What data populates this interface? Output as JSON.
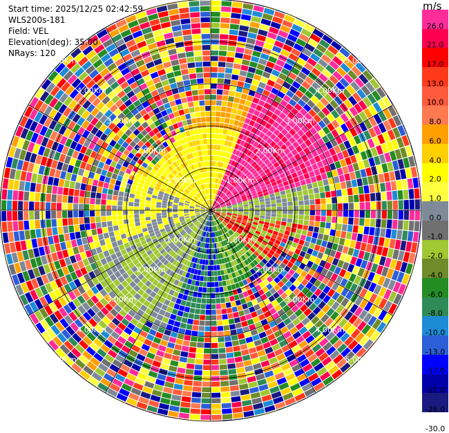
{
  "header": {
    "start_time": "Start time: 2025/12/25 02:42:59",
    "station": "WLS200s-181",
    "field": "Field: VEL",
    "elevation": "Elevation(deg): 35.00",
    "nrays": "NRays: 120"
  },
  "range_labels": [
    "1.00Km",
    "2.00Km",
    "3.00Km",
    "4.00Km",
    "5.00Km"
  ],
  "colorbar": {
    "unit": "m/s",
    "ticks": [
      "26.0",
      "21.0",
      "17.0",
      "13.0",
      "10.0",
      "8.0",
      "6.0",
      "4.0",
      "2.0",
      "1.0",
      "0.0",
      "-1.0",
      "-2.0",
      "-4.0",
      "-6.0",
      "-8.0",
      "-10.0",
      "-13.0",
      "-17.0",
      "-21.0",
      "-26.0",
      "-30.0"
    ],
    "colors": [
      "#ff2c9a",
      "#ff0050",
      "#ff0000",
      "#ff3a1a",
      "#ff5a3c",
      "#ff7a50",
      "#ff9f00",
      "#ffd000",
      "#ffff00",
      "#ffff40",
      "#7f8a98",
      "#707070",
      "#a0c832",
      "#6e8c2a",
      "#238c23",
      "#2e8b57",
      "#1e8bd7",
      "#2c5fd7",
      "#0000ff",
      "#0000aa",
      "#1a1a80"
    ],
    "title_label": "m/s"
  },
  "colors": {
    "background": "#ffffff",
    "ring": "#000000"
  }
}
